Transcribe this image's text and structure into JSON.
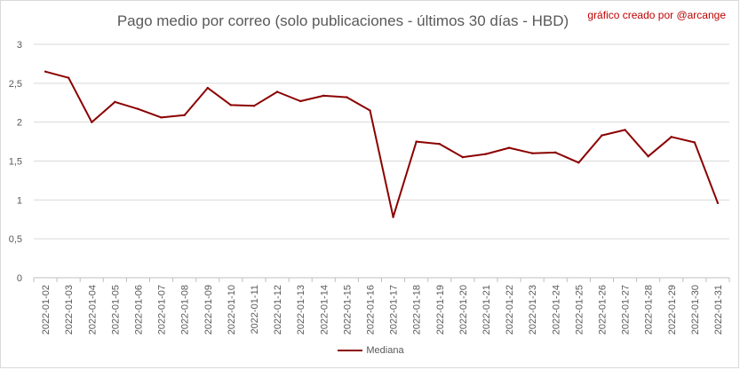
{
  "chart_data": {
    "type": "line",
    "title": "Pago medio por correo (solo publicaciones - últimos 30 días - HBD)",
    "credit": "gráfico creado por @arcange",
    "xlabel": "",
    "ylabel": "",
    "ylim": [
      0,
      3
    ],
    "yticks": [
      "0",
      "0,5",
      "1",
      "1,5",
      "2",
      "2,5",
      "3"
    ],
    "grid": true,
    "legend_position": "bottom",
    "categories": [
      "2022-01-02",
      "2022-01-03",
      "2022-01-04",
      "2022-01-05",
      "2022-01-06",
      "2022-01-07",
      "2022-01-08",
      "2022-01-09",
      "2022-01-10",
      "2022-01-11",
      "2022-01-12",
      "2022-01-13",
      "2022-01-14",
      "2022-01-15",
      "2022-01-16",
      "2022-01-17",
      "2022-01-18",
      "2022-01-19",
      "2022-01-20",
      "2022-01-21",
      "2022-01-22",
      "2022-01-23",
      "2022-01-24",
      "2022-01-25",
      "2022-01-26",
      "2022-01-27",
      "2022-01-28",
      "2022-01-29",
      "2022-01-30",
      "2022-01-31"
    ],
    "series": [
      {
        "name": "Mediana",
        "color": "#8b0000",
        "values": [
          2.65,
          2.57,
          2.0,
          2.26,
          2.17,
          2.06,
          2.09,
          2.44,
          2.22,
          2.21,
          2.39,
          2.27,
          2.34,
          2.32,
          2.15,
          0.78,
          1.75,
          1.72,
          1.55,
          1.59,
          1.67,
          1.6,
          1.61,
          1.48,
          1.83,
          1.9,
          1.56,
          1.81,
          1.74,
          0.96
        ]
      }
    ]
  }
}
